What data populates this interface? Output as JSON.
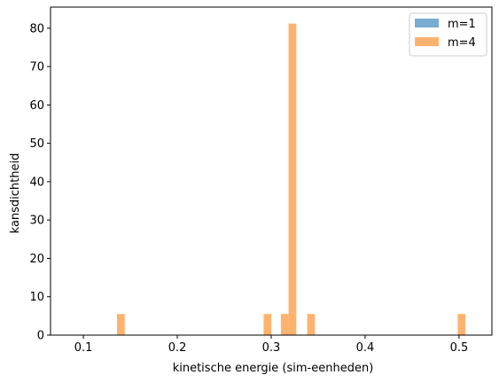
{
  "chart_data": {
    "type": "bar",
    "subtype": "histogram",
    "xlabel": "kinetische energie (sim-eenheden)",
    "ylabel": "kansdichtheid",
    "xlim": [
      0.065,
      0.535
    ],
    "ylim": [
      0,
      85.5
    ],
    "xticks": [
      0.1,
      0.2,
      0.3,
      0.4,
      0.5
    ],
    "xtick_labels": [
      "0.1",
      "0.2",
      "0.3",
      "0.4",
      "0.5"
    ],
    "yticks": [
      0,
      10,
      20,
      30,
      40,
      50,
      60,
      70,
      80
    ],
    "ytick_labels": [
      "0",
      "10",
      "20",
      "30",
      "40",
      "50",
      "60",
      "70",
      "80"
    ],
    "grid": false,
    "legend_position": "top-right",
    "series": [
      {
        "name": "m=1",
        "color": "#1f77b4",
        "alpha": 0.6,
        "bars": []
      },
      {
        "name": "m=4",
        "color": "#ff7f0e",
        "alpha": 0.6,
        "bars": [
          {
            "x0": 0.1358,
            "x1": 0.144,
            "value": 5.5
          },
          {
            "x0": 0.2919,
            "x1": 0.3001,
            "value": 5.5
          },
          {
            "x0": 0.3103,
            "x1": 0.3185,
            "value": 5.5
          },
          {
            "x0": 0.3185,
            "x1": 0.3267,
            "value": 81.2
          },
          {
            "x0": 0.3383,
            "x1": 0.3465,
            "value": 5.5
          },
          {
            "x0": 0.4986,
            "x1": 0.5068,
            "value": 5.5
          }
        ]
      }
    ]
  }
}
